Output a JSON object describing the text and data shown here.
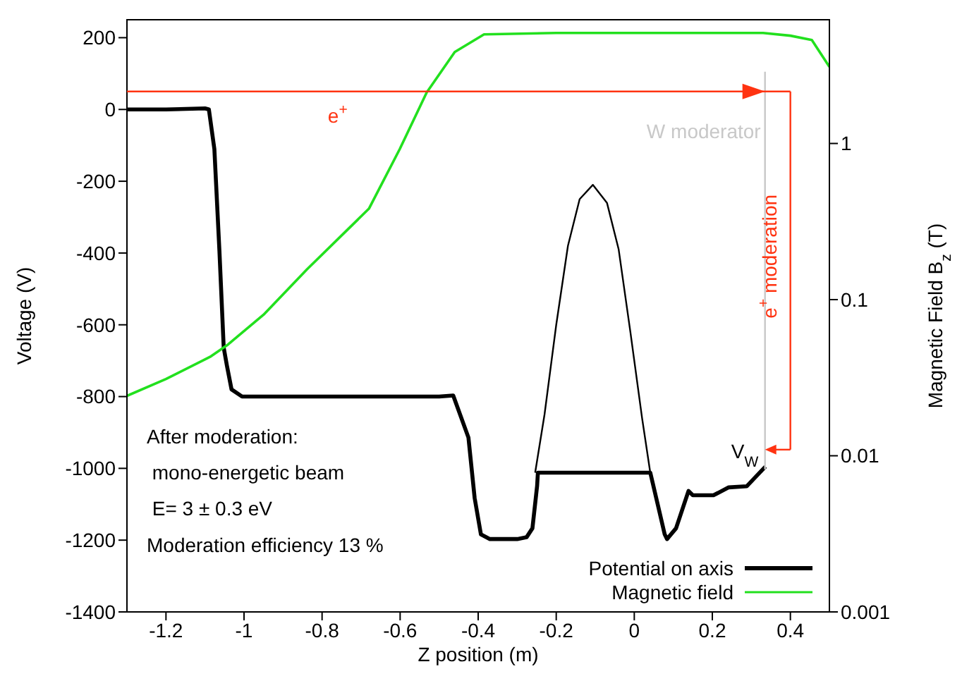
{
  "chart_data": {
    "type": "line",
    "xlabel": "Z position (m)",
    "ylabel": "Voltage (V)",
    "y2label": "Magnetic Field B$_{z}$ (T)",
    "xlim": [
      -1.3,
      0.5
    ],
    "xticks": [
      -1.2,
      -1,
      -0.8,
      -0.6,
      -0.4,
      -0.2,
      0,
      0.2,
      0.4
    ],
    "ylim": [
      -1400,
      250
    ],
    "yticks": [
      -1400,
      -1200,
      -1000,
      -800,
      -600,
      -400,
      -200,
      0,
      200
    ],
    "y2lim": [
      0.001,
      6.2
    ],
    "y2ticks": [
      0.001,
      0.01,
      0.1,
      1
    ],
    "log": "y2",
    "legend": "bottom right",
    "grid": false,
    "marker": "none",
    "line_style": "solid",
    "series": [
      {
        "name": "Potential on axis",
        "color": "#000000",
        "x": [
          -1.3,
          -1.2,
          -1.1,
          -1.09,
          -1.076,
          -1.063,
          -1.052,
          -1.044,
          -1.032,
          -1.005,
          -0.8,
          -0.6,
          -0.5,
          -0.464,
          -0.425,
          -0.409,
          -0.393,
          -0.37,
          -0.3,
          -0.276,
          -0.261,
          -0.249,
          -0.247,
          -0.1,
          0.041,
          0.06,
          0.078,
          0.084,
          0.107,
          0.139,
          0.15,
          0.203,
          0.242,
          0.288,
          0.336
        ],
        "values": [
          0,
          0,
          3,
          0,
          -110,
          -395,
          -664,
          -713,
          -780,
          -800,
          -800,
          -800,
          -800,
          -797,
          -914,
          -1083,
          -1184,
          -1197,
          -1197,
          -1192,
          -1167,
          -1049,
          -1012,
          -1012,
          -1012,
          -1100,
          -1184,
          -1197,
          -1167,
          -1063,
          -1075,
          -1075,
          -1053,
          -1050,
          -995
        ]
      },
      {
        "color": "#000000",
        "x": [
          -0.254,
          -0.23,
          -0.2,
          -0.17,
          -0.14,
          -0.106,
          -0.07,
          -0.04,
          -0.01,
          0.02,
          0.041
        ],
        "values": [
          -1012,
          -850,
          -600,
          -380,
          -250,
          -210,
          -260,
          -390,
          -620,
          -860,
          -1012
        ]
      },
      {
        "name": "Magnetic field",
        "color": "#22e01e",
        "axis": "y2",
        "x": [
          -1.3,
          -1.2,
          -1.087,
          -1.041,
          -0.95,
          -0.839,
          -0.68,
          -0.601,
          -0.532,
          -0.46,
          -0.385,
          -0.2,
          0,
          0.2,
          0.33,
          0.4,
          0.455,
          0.5
        ],
        "values": [
          0.0242,
          0.031,
          0.043,
          0.0516,
          0.08,
          0.156,
          0.382,
          0.92,
          2.12,
          3.85,
          5.0,
          5.1,
          5.1,
          5.1,
          5.1,
          4.9,
          4.6,
          3.1
        ]
      }
    ],
    "ref_lines": [
      {
        "axis": "y",
        "value": 50,
        "label": "e$^{+}$",
        "color": "#ff3311"
      },
      {
        "axis": "x",
        "value": 0.4,
        "label": "e$^{+}$ moderation",
        "color": "#ff3311"
      },
      {
        "axis": "x",
        "value": 0.335,
        "label": "W moderator",
        "color": "#c8c8c8"
      }
    ],
    "annotations": [
      {
        "text": "V$_{W}$",
        "x": 0.336,
        "y": -995
      },
      "After moderation:",
      " mono-energetic beam",
      " E= 3 ± 0.3 eV",
      "Moderation efficiency 13 %"
    ]
  }
}
